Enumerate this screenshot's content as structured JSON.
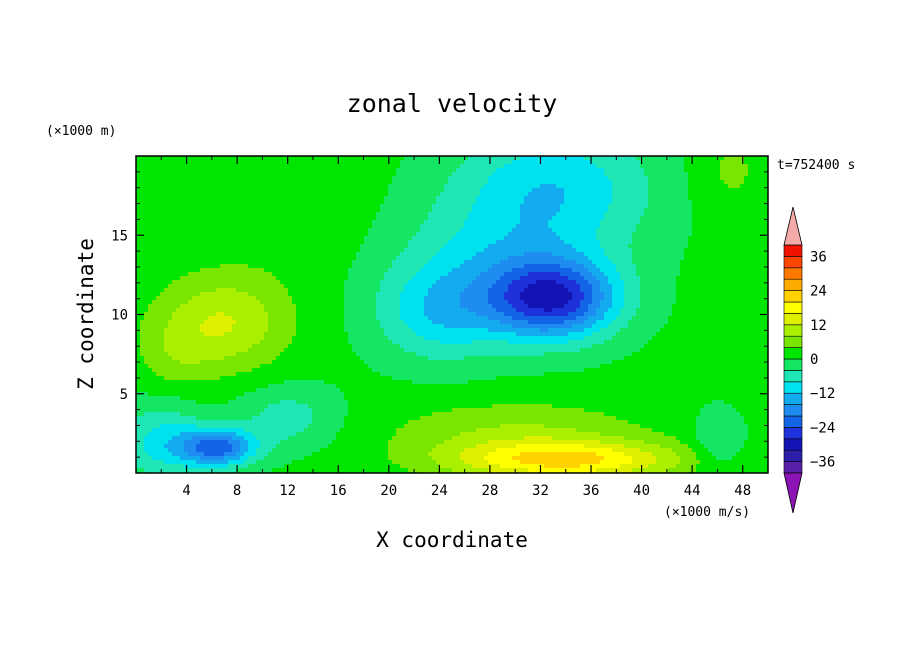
{
  "chart_data": {
    "type": "heatmap",
    "title": "zonal velocity",
    "xlabel": "X coordinate",
    "ylabel": "Z coordinate",
    "x_unit": "(×1000 m/s)",
    "y_unit": "(×1000 m)",
    "time_label": "t=752400 s",
    "xlim": [
      0,
      50
    ],
    "ylim": [
      0,
      20
    ],
    "x_ticks": [
      4,
      8,
      12,
      16,
      20,
      24,
      28,
      32,
      36,
      40,
      44,
      48
    ],
    "y_ticks": [
      5,
      10,
      15
    ],
    "grid": false,
    "colorbar": {
      "placement": "right",
      "tick_values": [
        36,
        24,
        12,
        0,
        -12,
        -24,
        -36
      ],
      "levels": [
        {
          "min": -40,
          "max": -36,
          "color": "#5a1fa8"
        },
        {
          "min": -36,
          "max": -32,
          "color": "#2c1ea8"
        },
        {
          "min": -32,
          "max": -28,
          "color": "#1414b4"
        },
        {
          "min": -28,
          "max": -24,
          "color": "#1e32dc"
        },
        {
          "min": -24,
          "max": -20,
          "color": "#1464e6"
        },
        {
          "min": -20,
          "max": -16,
          "color": "#1e8cf0"
        },
        {
          "min": -16,
          "max": -12,
          "color": "#14aaf0"
        },
        {
          "min": -12,
          "max": -8,
          "color": "#00e1f0"
        },
        {
          "min": -8,
          "max": -4,
          "color": "#1ee6b4"
        },
        {
          "min": -4,
          "max": 0,
          "color": "#14e664"
        },
        {
          "min": 0,
          "max": 4,
          "color": "#00e600"
        },
        {
          "min": 4,
          "max": 8,
          "color": "#78e600"
        },
        {
          "min": 8,
          "max": 12,
          "color": "#aaf000"
        },
        {
          "min": 12,
          "max": 16,
          "color": "#dcf000"
        },
        {
          "min": 16,
          "max": 20,
          "color": "#ffff00"
        },
        {
          "min": 20,
          "max": 24,
          "color": "#ffd200"
        },
        {
          "min": 24,
          "max": 28,
          "color": "#ffaa00"
        },
        {
          "min": 28,
          "max": 32,
          "color": "#ff7800"
        },
        {
          "min": 32,
          "max": 36,
          "color": "#ff4600"
        },
        {
          "min": 36,
          "max": 40,
          "color": "#f01400"
        }
      ],
      "over_color": "#f5aaaa",
      "under_color": "#8c14b4"
    },
    "features": [
      {
        "x": 33,
        "z": 11,
        "value": -27,
        "sx": 5,
        "sz": 2.5
      },
      {
        "x": 28,
        "z": 13,
        "value": -8,
        "sx": 8,
        "sz": 4
      },
      {
        "x": 33,
        "z": 18,
        "value": -12,
        "sx": 8,
        "sz": 4
      },
      {
        "x": 24,
        "z": 10,
        "value": -10,
        "sx": 5,
        "sz": 3
      },
      {
        "x": 7,
        "z": 9.5,
        "value": 11,
        "sx": 5,
        "sz": 3
      },
      {
        "x": 3,
        "z": 7.5,
        "value": 4,
        "sx": 3,
        "sz": 2.5
      },
      {
        "x": 34,
        "z": 0.8,
        "value": 19,
        "sx": 9,
        "sz": 1.2
      },
      {
        "x": 30,
        "z": 2.5,
        "value": 7,
        "sx": 10,
        "sz": 2
      },
      {
        "x": 6.5,
        "z": 1.6,
        "value": -22,
        "sx": 3,
        "sz": 1.2
      },
      {
        "x": 2,
        "z": 2,
        "value": -10,
        "sx": 3.5,
        "sz": 2.5
      },
      {
        "x": 12,
        "z": 3.5,
        "value": -7,
        "sx": 4,
        "sz": 2
      },
      {
        "x": 47,
        "z": 19,
        "value": 4,
        "sx": 3,
        "sz": 3
      },
      {
        "x": 46,
        "z": 2,
        "value": -6,
        "sx": 2,
        "sz": 2
      },
      {
        "x": 13,
        "z": 17,
        "value": 2,
        "sx": 6,
        "sz": 5
      }
    ]
  }
}
